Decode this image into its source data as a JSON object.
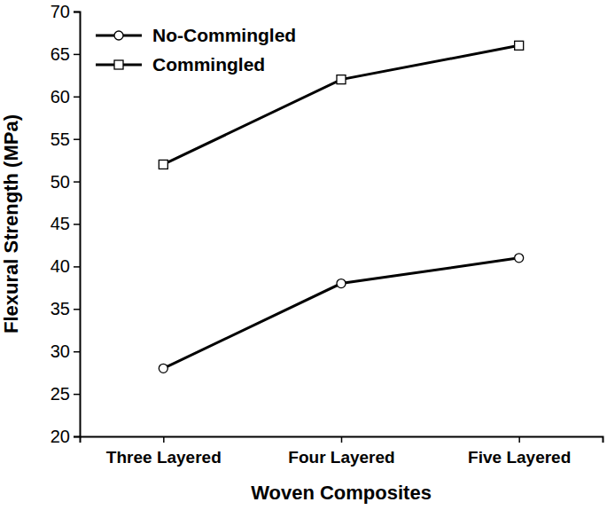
{
  "chart_data": {
    "type": "line",
    "x_label": "Woven Composites",
    "y_label": "Flexural Strength (MPa)",
    "categories": [
      "Three Layered",
      "Four Layered",
      "Five Layered"
    ],
    "series": [
      {
        "name": "No-Commingled",
        "color": "#000000",
        "marker": "circle",
        "line_style": "solid",
        "values": [
          28,
          38,
          41
        ]
      },
      {
        "name": "Commingled",
        "color": "#000000",
        "marker": "square",
        "line_style": "solid",
        "values": [
          52,
          62,
          66
        ]
      }
    ],
    "ylim": [
      20,
      70
    ],
    "yticks": [
      20,
      25,
      30,
      35,
      40,
      45,
      50,
      55,
      60,
      65,
      70
    ],
    "grid": false,
    "legend": "upper left"
  }
}
